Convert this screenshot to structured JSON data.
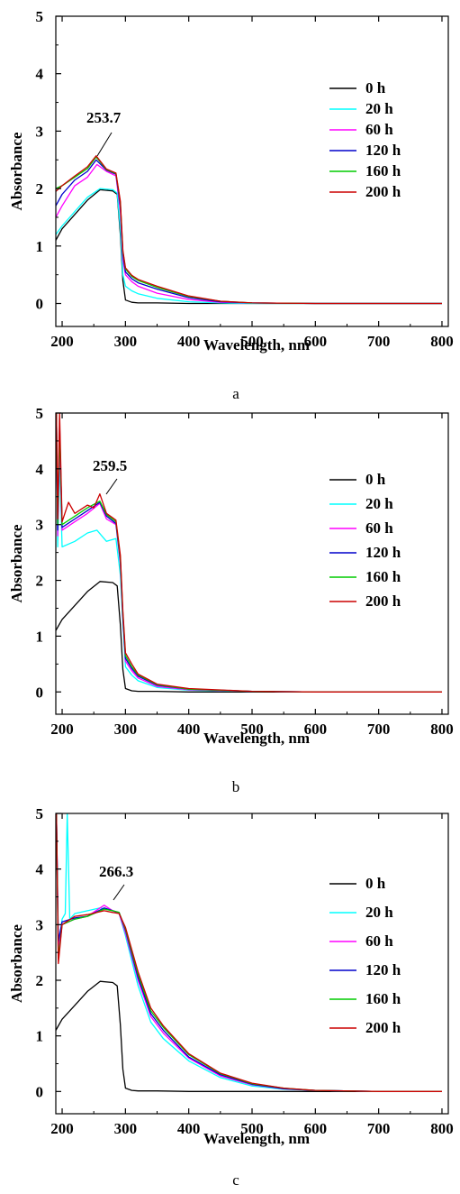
{
  "chart_data": [
    {
      "type": "line",
      "panel_label": "a",
      "xlabel": "Wavelength, nm",
      "ylabel": "Absorbance",
      "xlim": [
        190,
        810
      ],
      "ylim": [
        -0.4,
        5
      ],
      "xticks": [
        200,
        300,
        400,
        500,
        600,
        700,
        800
      ],
      "yticks": [
        0,
        1,
        2,
        3,
        4,
        5
      ],
      "grid": false,
      "legend_position": "right",
      "annotation": {
        "text": "253.7",
        "x": 253.7,
        "y": 2.55
      },
      "series": [
        {
          "name": "0 h",
          "color": "#000000",
          "x": [
            190,
            200,
            220,
            240,
            260,
            280,
            287,
            292,
            296,
            300,
            310,
            320,
            350,
            400,
            500,
            600,
            700,
            800
          ],
          "y": [
            1.1,
            1.3,
            1.55,
            1.8,
            1.98,
            1.96,
            1.9,
            1.2,
            0.4,
            0.06,
            0.02,
            0.01,
            0.01,
            0.0,
            0.0,
            0.0,
            0.0,
            0.0
          ]
        },
        {
          "name": "20 h",
          "color": "#00ffff",
          "x": [
            190,
            200,
            220,
            240,
            260,
            280,
            287,
            292,
            296,
            300,
            310,
            320,
            350,
            400,
            450,
            500,
            600,
            700,
            800
          ],
          "y": [
            1.2,
            1.35,
            1.6,
            1.85,
            2.0,
            1.98,
            1.92,
            1.3,
            0.5,
            0.3,
            0.22,
            0.17,
            0.09,
            0.03,
            0.01,
            0.0,
            0.0,
            0.0,
            0.0
          ]
        },
        {
          "name": "60 h",
          "color": "#ff00ff",
          "x": [
            190,
            200,
            220,
            240,
            255,
            270,
            285,
            292,
            296,
            300,
            310,
            320,
            350,
            400,
            450,
            500,
            600,
            700,
            800
          ],
          "y": [
            1.5,
            1.7,
            2.05,
            2.2,
            2.42,
            2.3,
            2.22,
            1.6,
            0.75,
            0.5,
            0.38,
            0.3,
            0.18,
            0.07,
            0.02,
            0.01,
            0.0,
            0.0,
            0.0
          ]
        },
        {
          "name": "120 h",
          "color": "#0000cc",
          "x": [
            190,
            200,
            220,
            240,
            253.7,
            270,
            285,
            292,
            296,
            300,
            310,
            320,
            350,
            400,
            450,
            500,
            600,
            700,
            800
          ],
          "y": [
            1.7,
            1.9,
            2.15,
            2.3,
            2.5,
            2.32,
            2.25,
            1.7,
            0.85,
            0.55,
            0.43,
            0.36,
            0.25,
            0.1,
            0.03,
            0.01,
            0.0,
            0.0,
            0.0
          ]
        },
        {
          "name": "160 h",
          "color": "#00cc00",
          "x": [
            190,
            200,
            220,
            240,
            253.7,
            270,
            285,
            292,
            296,
            300,
            310,
            320,
            350,
            400,
            450,
            500,
            600,
            700,
            800
          ],
          "y": [
            2.0,
            2.05,
            2.2,
            2.35,
            2.55,
            2.33,
            2.26,
            1.75,
            0.9,
            0.6,
            0.47,
            0.4,
            0.28,
            0.12,
            0.04,
            0.01,
            0.0,
            0.0,
            0.0
          ]
        },
        {
          "name": "200 h",
          "color": "#cc0000",
          "x": [
            190,
            200,
            220,
            240,
            253.7,
            270,
            285,
            292,
            296,
            300,
            310,
            320,
            350,
            400,
            450,
            500,
            600,
            700,
            800
          ],
          "y": [
            1.95,
            2.05,
            2.22,
            2.38,
            2.57,
            2.34,
            2.27,
            1.78,
            0.92,
            0.62,
            0.49,
            0.42,
            0.3,
            0.13,
            0.04,
            0.01,
            0.0,
            0.0,
            0.0
          ]
        }
      ]
    },
    {
      "type": "line",
      "panel_label": "b",
      "xlabel": "Wavelength, nm",
      "ylabel": "Absorbance",
      "xlim": [
        190,
        810
      ],
      "ylim": [
        -0.4,
        5
      ],
      "xticks": [
        200,
        300,
        400,
        500,
        600,
        700,
        800
      ],
      "yticks": [
        0,
        1,
        2,
        3,
        4,
        5
      ],
      "grid": false,
      "legend_position": "right",
      "annotation": {
        "text": "259.5",
        "x": 259.5,
        "y": 3.5
      },
      "series": [
        {
          "name": "0 h",
          "color": "#000000",
          "x": [
            190,
            200,
            220,
            240,
            260,
            280,
            287,
            292,
            296,
            300,
            310,
            320,
            350,
            400,
            500,
            600,
            700,
            800
          ],
          "y": [
            1.1,
            1.3,
            1.55,
            1.8,
            1.98,
            1.96,
            1.9,
            1.2,
            0.4,
            0.06,
            0.02,
            0.01,
            0.01,
            0.0,
            0.0,
            0.0,
            0.0,
            0.0
          ]
        },
        {
          "name": "20 h",
          "color": "#00ffff",
          "x": [
            191,
            193,
            196,
            200,
            220,
            240,
            255,
            270,
            285,
            292,
            296,
            300,
            310,
            320,
            350,
            400,
            500,
            600,
            700,
            800
          ],
          "y": [
            5.0,
            2.6,
            4.2,
            2.6,
            2.7,
            2.85,
            2.9,
            2.7,
            2.75,
            2.1,
            1.2,
            0.45,
            0.3,
            0.2,
            0.08,
            0.03,
            0.01,
            0.0,
            0.0,
            0.0
          ]
        },
        {
          "name": "60 h",
          "color": "#ff00ff",
          "x": [
            191,
            193,
            196,
            200,
            220,
            240,
            259.5,
            270,
            285,
            292,
            296,
            300,
            310,
            320,
            350,
            400,
            500,
            600,
            700,
            800
          ],
          "y": [
            5.0,
            2.8,
            4.5,
            2.9,
            3.05,
            3.2,
            3.38,
            3.1,
            3.0,
            2.3,
            1.3,
            0.55,
            0.38,
            0.25,
            0.1,
            0.04,
            0.01,
            0.0,
            0.0,
            0.0
          ]
        },
        {
          "name": "120 h",
          "color": "#0000cc",
          "x": [
            191,
            193,
            196,
            200,
            220,
            240,
            259.5,
            270,
            285,
            292,
            296,
            300,
            310,
            320,
            350,
            400,
            500,
            600,
            700,
            800
          ],
          "y": [
            5.0,
            2.9,
            4.8,
            2.95,
            3.1,
            3.25,
            3.4,
            3.15,
            3.02,
            2.35,
            1.35,
            0.6,
            0.42,
            0.28,
            0.12,
            0.05,
            0.01,
            0.0,
            0.0,
            0.0
          ]
        },
        {
          "name": "160 h",
          "color": "#00cc00",
          "x": [
            191,
            193,
            196,
            200,
            220,
            240,
            259.5,
            270,
            285,
            292,
            296,
            300,
            310,
            320,
            350,
            400,
            500,
            600,
            700,
            800
          ],
          "y": [
            5.0,
            3.0,
            4.7,
            3.0,
            3.15,
            3.3,
            3.42,
            3.18,
            3.05,
            2.4,
            1.4,
            0.65,
            0.45,
            0.3,
            0.13,
            0.05,
            0.01,
            0.0,
            0.0,
            0.0
          ]
        },
        {
          "name": "200 h",
          "color": "#cc0000",
          "x": [
            191,
            193,
            196,
            200,
            210,
            220,
            240,
            250,
            259.5,
            270,
            285,
            292,
            296,
            300,
            310,
            320,
            350,
            400,
            500,
            600,
            700,
            800
          ],
          "y": [
            5.0,
            3.1,
            5.0,
            3.05,
            3.4,
            3.2,
            3.35,
            3.3,
            3.55,
            3.2,
            3.08,
            2.45,
            1.45,
            0.7,
            0.5,
            0.32,
            0.14,
            0.06,
            0.01,
            0.0,
            0.0,
            0.0
          ]
        }
      ]
    },
    {
      "type": "line",
      "panel_label": "c",
      "xlabel": "Wavelength, nm",
      "ylabel": "Absorbance",
      "xlim": [
        190,
        810
      ],
      "ylim": [
        -0.4,
        5
      ],
      "xticks": [
        200,
        300,
        400,
        500,
        600,
        700,
        800
      ],
      "yticks": [
        0,
        1,
        2,
        3,
        4,
        5
      ],
      "grid": false,
      "legend_position": "right",
      "annotation": {
        "text": "266.3",
        "x": 266.3,
        "y": 3.35
      },
      "series": [
        {
          "name": "0 h",
          "color": "#000000",
          "x": [
            190,
            200,
            220,
            240,
            260,
            280,
            287,
            292,
            296,
            300,
            310,
            320,
            350,
            400,
            500,
            600,
            700,
            800
          ],
          "y": [
            1.1,
            1.3,
            1.55,
            1.8,
            1.98,
            1.96,
            1.9,
            1.2,
            0.4,
            0.06,
            0.02,
            0.01,
            0.01,
            0.0,
            0.0,
            0.0,
            0.0,
            0.0
          ]
        },
        {
          "name": "20 h",
          "color": "#00ffff",
          "x": [
            191,
            194,
            200,
            205,
            208,
            212,
            220,
            240,
            260,
            280,
            290,
            300,
            320,
            340,
            360,
            400,
            450,
            500,
            550,
            600,
            700,
            800
          ],
          "y": [
            5.0,
            2.5,
            3.1,
            3.2,
            5.0,
            3.1,
            3.2,
            3.25,
            3.3,
            3.25,
            3.2,
            2.8,
            1.9,
            1.25,
            0.95,
            0.55,
            0.25,
            0.1,
            0.04,
            0.02,
            0.0,
            0.0
          ]
        },
        {
          "name": "60 h",
          "color": "#ff00ff",
          "x": [
            191,
            194,
            200,
            220,
            240,
            266.3,
            280,
            290,
            300,
            320,
            340,
            360,
            400,
            450,
            500,
            550,
            600,
            700,
            800
          ],
          "y": [
            5.0,
            2.6,
            3.0,
            3.1,
            3.15,
            3.35,
            3.25,
            3.2,
            2.85,
            2.0,
            1.35,
            1.05,
            0.6,
            0.28,
            0.12,
            0.05,
            0.02,
            0.0,
            0.0
          ]
        },
        {
          "name": "120 h",
          "color": "#0000cc",
          "x": [
            191,
            194,
            200,
            220,
            240,
            266.3,
            280,
            290,
            300,
            320,
            340,
            360,
            400,
            450,
            500,
            550,
            600,
            700,
            800
          ],
          "y": [
            5.0,
            2.7,
            3.05,
            3.12,
            3.15,
            3.3,
            3.25,
            3.22,
            2.9,
            2.05,
            1.4,
            1.1,
            0.62,
            0.3,
            0.13,
            0.05,
            0.02,
            0.0,
            0.0
          ]
        },
        {
          "name": "160 h",
          "color": "#00cc00",
          "x": [
            191,
            194,
            200,
            220,
            240,
            266.3,
            280,
            290,
            300,
            320,
            340,
            360,
            400,
            450,
            500,
            550,
            600,
            700,
            800
          ],
          "y": [
            5.0,
            2.4,
            3.0,
            3.1,
            3.15,
            3.28,
            3.25,
            3.22,
            2.92,
            2.1,
            1.45,
            1.15,
            0.66,
            0.32,
            0.14,
            0.06,
            0.02,
            0.0,
            0.0
          ]
        },
        {
          "name": "200 h",
          "color": "#cc0000",
          "x": [
            191,
            194,
            200,
            220,
            240,
            266.3,
            280,
            290,
            300,
            320,
            340,
            360,
            400,
            450,
            500,
            550,
            600,
            700,
            800
          ],
          "y": [
            5.0,
            2.3,
            3.0,
            3.15,
            3.18,
            3.25,
            3.22,
            3.2,
            2.95,
            2.15,
            1.5,
            1.18,
            0.68,
            0.33,
            0.15,
            0.06,
            0.02,
            0.0,
            0.0
          ]
        }
      ]
    }
  ]
}
